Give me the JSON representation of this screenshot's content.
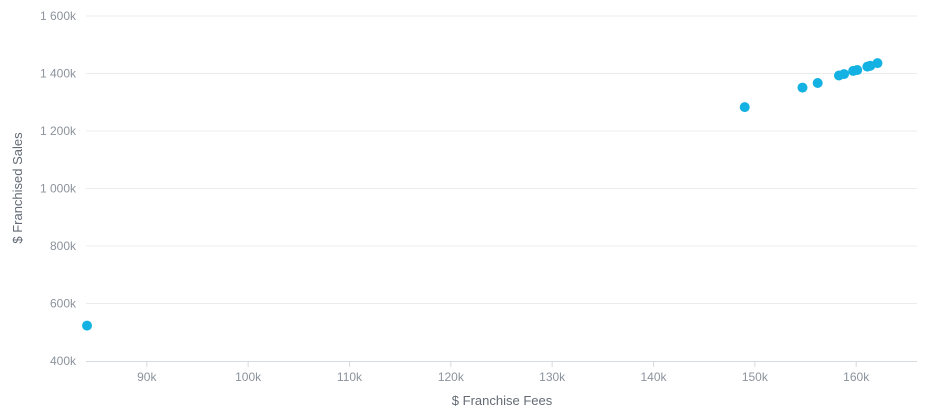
{
  "chart_data": {
    "type": "scatter",
    "title": "",
    "xlabel": "$ Franchise Fees",
    "ylabel": "$ Franchised Sales",
    "xlim": [
      84000,
      166000
    ],
    "ylim": [
      400000,
      1600000
    ],
    "grid": true,
    "colors": {
      "point": "#14b2e2"
    },
    "x_ticks": [
      {
        "value": 90000,
        "label": "90k"
      },
      {
        "value": 100000,
        "label": "100k"
      },
      {
        "value": 110000,
        "label": "110k"
      },
      {
        "value": 120000,
        "label": "120k"
      },
      {
        "value": 130000,
        "label": "130k"
      },
      {
        "value": 140000,
        "label": "140k"
      },
      {
        "value": 150000,
        "label": "150k"
      },
      {
        "value": 160000,
        "label": "160k"
      }
    ],
    "y_ticks": [
      {
        "value": 400000,
        "label": "400k"
      },
      {
        "value": 600000,
        "label": "600k"
      },
      {
        "value": 800000,
        "label": "800k"
      },
      {
        "value": 1000000,
        "label": "1 000k"
      },
      {
        "value": 1200000,
        "label": "1 200k"
      },
      {
        "value": 1400000,
        "label": "1 400k"
      },
      {
        "value": 1600000,
        "label": "1 600k"
      }
    ],
    "points": [
      {
        "x": 84100,
        "y": 523000
      },
      {
        "x": 149000,
        "y": 1283000
      },
      {
        "x": 154700,
        "y": 1351000
      },
      {
        "x": 156200,
        "y": 1367000
      },
      {
        "x": 158300,
        "y": 1393000
      },
      {
        "x": 158800,
        "y": 1398000
      },
      {
        "x": 159700,
        "y": 1409000
      },
      {
        "x": 160100,
        "y": 1412000
      },
      {
        "x": 161100,
        "y": 1424000
      },
      {
        "x": 161400,
        "y": 1427000
      },
      {
        "x": 162100,
        "y": 1436000
      }
    ]
  }
}
